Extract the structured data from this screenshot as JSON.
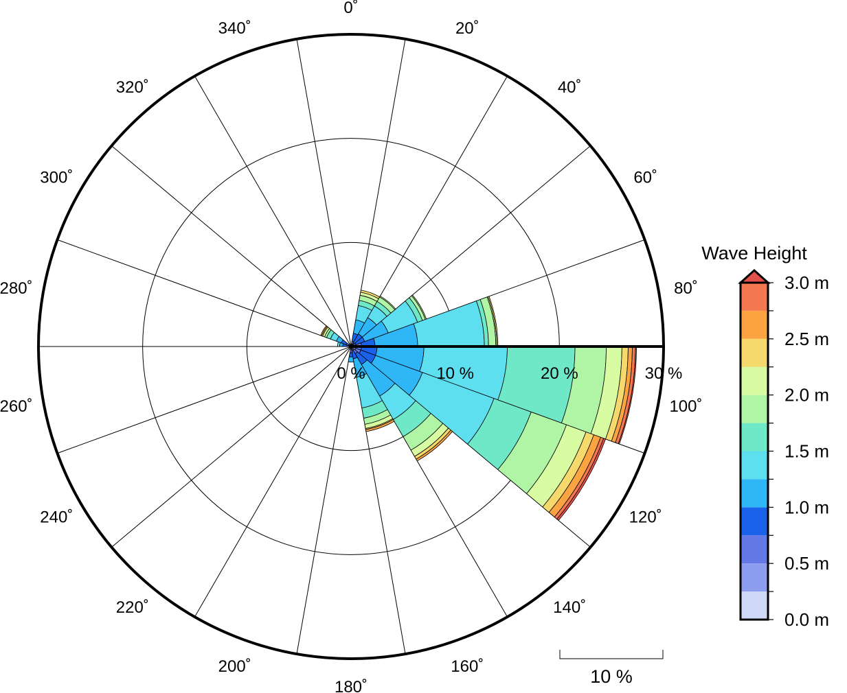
{
  "chart_data": {
    "type": "polar-bar",
    "title": "",
    "direction_ticks": [
      "0˚",
      "20˚",
      "40˚",
      "60˚",
      "80˚",
      "100˚",
      "120˚",
      "140˚",
      "160˚",
      "180˚",
      "200˚",
      "220˚",
      "240˚",
      "260˚",
      "280˚",
      "300˚",
      "320˚",
      "340˚"
    ],
    "direction_tick_values": [
      0,
      20,
      40,
      60,
      80,
      100,
      120,
      140,
      160,
      180,
      200,
      220,
      240,
      260,
      280,
      300,
      320,
      340
    ],
    "sector_width_deg": 20,
    "radial_ticks": [
      "0 %",
      "10 %",
      "20 %",
      "30 %"
    ],
    "radial_tick_values": [
      0,
      10,
      20,
      30
    ],
    "radial_max": 30,
    "scale_bar_label": "10 %",
    "scale_bar_value": 10,
    "grid": true,
    "legend_position": "right",
    "colorbar": {
      "title": "Wave Height",
      "labels": [
        "3.0 m",
        "2.5 m",
        "2.0 m",
        "1.5 m",
        "1.0 m",
        "0.5 m",
        "0.0 m"
      ],
      "label_values": [
        3.0,
        2.5,
        2.0,
        1.5,
        1.0,
        0.5,
        0.0
      ],
      "bin_edges": [
        0.0,
        0.25,
        0.5,
        0.75,
        1.0,
        1.25,
        1.5,
        1.75,
        2.0,
        2.25,
        2.5,
        2.75,
        3.0
      ],
      "colors": [
        "#d0d8f8",
        "#8c9cee",
        "#6478e6",
        "#1a62ea",
        "#2eb6f6",
        "#5edff0",
        "#6fe8c8",
        "#b0f4a6",
        "#d8fca2",
        "#f6d96c",
        "#fca442",
        "#f47850",
        "#e2524a"
      ],
      "extend_max_color": "#e2524a"
    },
    "sectors": [
      {
        "direction": 0,
        "cumulative": [
          0.1,
          0.2
        ]
      },
      {
        "direction": 20,
        "cumulative": [
          0.1,
          0.25,
          0.5,
          1.3,
          2.6,
          4.0,
          4.5,
          5.0,
          5.3,
          5.5
        ]
      },
      {
        "direction": 40,
        "cumulative": [
          0.1,
          0.25,
          0.4,
          1.4,
          3.2,
          4.5,
          5.0,
          5.5,
          5.6
        ]
      },
      {
        "direction": 60,
        "cumulative": [
          0.1,
          0.3,
          0.5,
          1.4,
          3.8,
          6.8,
          7.3,
          7.6,
          7.7
        ]
      },
      {
        "direction": 80,
        "cumulative": [
          0.2,
          0.5,
          1.0,
          2.3,
          6.4,
          12.8,
          13.2,
          13.9,
          14.0,
          14.1
        ]
      },
      {
        "direction": 100,
        "cumulative": [
          0.2,
          0.5,
          1.0,
          2.5,
          7.0,
          15.0,
          21.5,
          24.5,
          26.0,
          26.6,
          27.0,
          27.3,
          27.4
        ]
      },
      {
        "direction": 120,
        "cumulative": [
          0.2,
          0.5,
          1.0,
          2.5,
          7.3,
          14.6,
          18.4,
          22.0,
          24.0,
          24.8,
          25.5,
          25.8,
          26.0
        ]
      },
      {
        "direction": 140,
        "cumulative": [
          0.2,
          0.4,
          0.8,
          2.0,
          5.5,
          8.1,
          10.0,
          11.5,
          12.2,
          12.5,
          12.7
        ]
      },
      {
        "direction": 160,
        "cumulative": [
          0.1,
          0.2,
          0.4,
          1.2,
          3.0,
          6.0,
          7.0,
          7.6,
          8.0,
          8.1,
          8.3
        ]
      },
      {
        "direction": 180,
        "cumulative": [
          0.1,
          0.3,
          0.6,
          1.0,
          1.5
        ]
      },
      {
        "direction": 200,
        "cumulative": [
          0.05,
          0.1
        ]
      },
      {
        "direction": 260,
        "cumulative": [
          0.1,
          0.2
        ]
      },
      {
        "direction": 280,
        "cumulative": [
          0.1,
          0.2,
          0.4,
          0.8,
          1.1,
          1.3
        ]
      },
      {
        "direction": 300,
        "cumulative": [
          0.1,
          0.25,
          0.5,
          1.0,
          1.5,
          2.1,
          2.5,
          2.7,
          2.9,
          3.0,
          3.1
        ]
      },
      {
        "direction": 320,
        "cumulative": [
          0.05,
          0.1,
          0.3
        ]
      },
      {
        "direction": 340,
        "cumulative": [
          0.05,
          0.1
        ]
      }
    ]
  }
}
